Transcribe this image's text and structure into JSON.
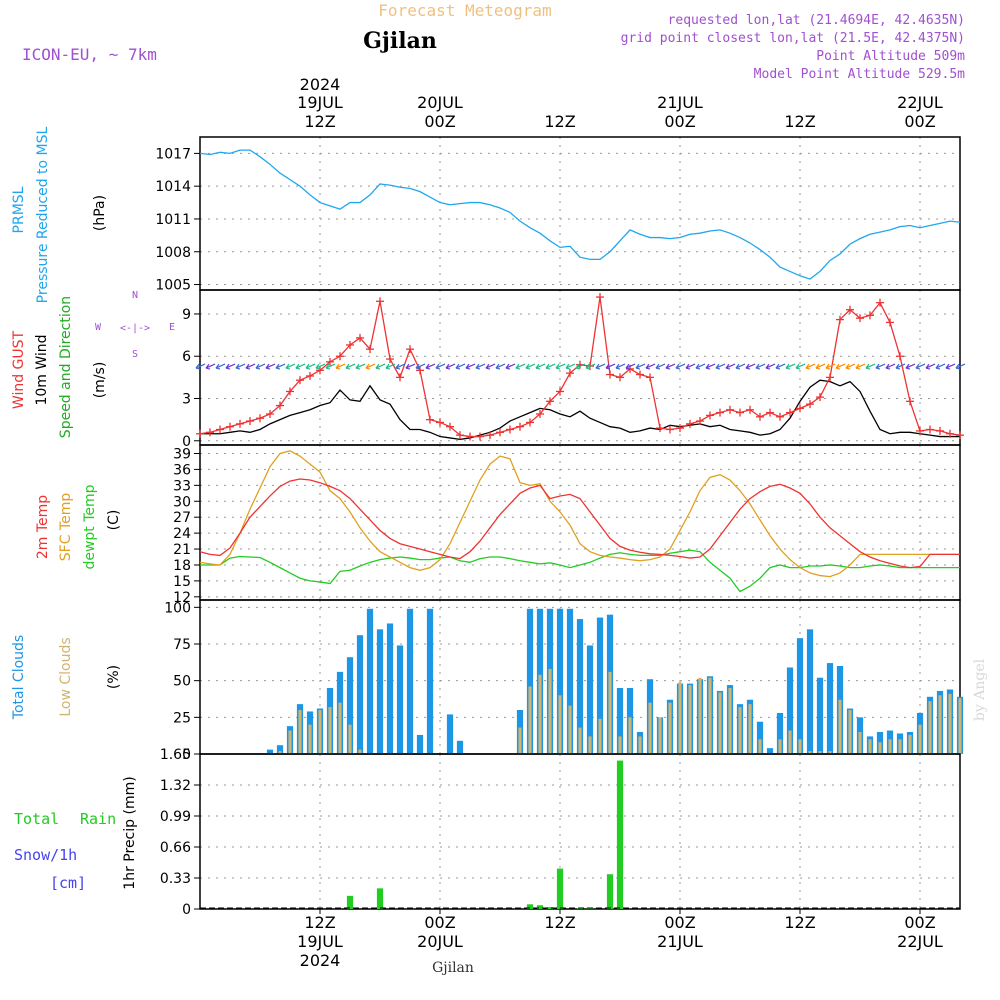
{
  "header": {
    "title": "Forecast Meteogram",
    "location": "Gjilan",
    "model": "ICON-EU, ~ 7km",
    "requested": "requested lon,lat (21.4694E, 42.4635N)",
    "gridpoint": "grid point closest lon,lat (21.5E, 42.4375N)",
    "point_altitude": "Point Altitude 509m",
    "model_altitude": "Model Point Altitude 529.5m",
    "footer_location": "Gjilan",
    "credit": "by Angel"
  },
  "colors": {
    "pressure": "#1fa7ee",
    "gust": "#ee3333",
    "wind": "#000000",
    "direction_label": "#22aa22",
    "temp": "#ee3333",
    "sfc": "#e0a020",
    "dewpt": "#22cc22",
    "total_clouds": "#1e96e6",
    "low_clouds": "#d2b46e",
    "rain": "#22cc22",
    "snow": "#4444ee",
    "title": "#f0c080",
    "meta": "#a050d0"
  },
  "time_axis": {
    "top_ticks": [
      {
        "hour": 12,
        "line1": "2024",
        "line2": "19JUL",
        "line3": "12Z"
      },
      {
        "hour": 24,
        "line1": "",
        "line2": "20JUL",
        "line3": "00Z"
      },
      {
        "hour": 36,
        "line1": "",
        "line2": "",
        "line3": "12Z"
      },
      {
        "hour": 48,
        "line1": "",
        "line2": "21JUL",
        "line3": "00Z"
      },
      {
        "hour": 60,
        "line1": "",
        "line2": "",
        "line3": "12Z"
      },
      {
        "hour": 72,
        "line1": "",
        "line2": "22JUL",
        "line3": "00Z"
      }
    ],
    "bottom_ticks": [
      {
        "hour": 12,
        "line1": "12Z",
        "line2": "19JUL",
        "line3": "2024"
      },
      {
        "hour": 24,
        "line1": "00Z",
        "line2": "20JUL",
        "line3": ""
      },
      {
        "hour": 36,
        "line1": "12Z",
        "line2": "",
        "line3": ""
      },
      {
        "hour": 48,
        "line1": "00Z",
        "line2": "21JUL",
        "line3": ""
      },
      {
        "hour": 60,
        "line1": "12Z",
        "line2": "",
        "line3": ""
      },
      {
        "hour": 72,
        "line1": "00Z",
        "line2": "22JUL",
        "line3": ""
      }
    ]
  },
  "chart_data": [
    {
      "type": "line",
      "name": "pressure",
      "labels": [
        "PRMSL",
        "Pressure Reduced to MSL",
        "(hPa)"
      ],
      "ylim": [
        1004.5,
        1018.5
      ],
      "ticks": [
        1005,
        1008,
        1011,
        1014,
        1017
      ],
      "x": [
        0,
        1,
        2,
        3,
        4,
        5,
        6,
        7,
        8,
        9,
        10,
        11,
        12,
        13,
        14,
        15,
        16,
        17,
        18,
        19,
        20,
        21,
        22,
        23,
        24,
        25,
        26,
        27,
        28,
        29,
        30,
        31,
        32,
        33,
        34,
        35,
        36,
        37,
        38,
        39,
        40,
        41,
        42,
        43,
        44,
        45,
        46,
        47,
        48,
        49,
        50,
        51,
        52,
        53,
        54,
        55,
        56,
        57,
        58,
        59,
        60,
        61,
        62,
        63,
        64,
        65,
        66,
        67,
        68,
        69,
        70,
        71,
        72,
        73,
        74,
        75,
        76
      ],
      "values": [
        1017.0,
        1016.9,
        1017.1,
        1017.0,
        1017.3,
        1017.3,
        1016.7,
        1016.0,
        1015.2,
        1014.6,
        1014.0,
        1013.2,
        1012.5,
        1012.2,
        1011.9,
        1012.5,
        1012.5,
        1013.2,
        1014.2,
        1014.1,
        1013.9,
        1013.8,
        1013.5,
        1013.0,
        1012.5,
        1012.3,
        1012.4,
        1012.5,
        1012.5,
        1012.3,
        1012.0,
        1011.6,
        1010.8,
        1010.2,
        1009.7,
        1009.0,
        1008.4,
        1008.5,
        1007.5,
        1007.3,
        1007.3,
        1008.0,
        1009.0,
        1010.0,
        1009.6,
        1009.3,
        1009.3,
        1009.2,
        1009.3,
        1009.6,
        1009.7,
        1009.9,
        1010.0,
        1009.7,
        1009.3,
        1008.8,
        1008.2,
        1007.5,
        1006.6,
        1006.2,
        1005.8,
        1005.5,
        1006.2,
        1007.2,
        1007.8,
        1008.7,
        1009.2,
        1009.6,
        1009.8,
        1010.0,
        1010.3,
        1010.4,
        1010.2,
        1010.4,
        1010.6,
        1010.8,
        1010.7
      ]
    },
    {
      "type": "line",
      "name": "wind",
      "labels": [
        "Wind GUST",
        "10m Wind",
        "Speed and Direction",
        "(m/s)"
      ],
      "compass": {
        "n": "N",
        "s": "S",
        "w": "W",
        "e": "E"
      },
      "ylim": [
        -0.3,
        10.7
      ],
      "ticks": [
        0,
        3,
        6,
        9
      ],
      "x": [
        0,
        1,
        2,
        3,
        4,
        5,
        6,
        7,
        8,
        9,
        10,
        11,
        12,
        13,
        14,
        15,
        16,
        17,
        18,
        19,
        20,
        21,
        22,
        23,
        24,
        25,
        26,
        27,
        28,
        29,
        30,
        31,
        32,
        33,
        34,
        35,
        36,
        37,
        38,
        39,
        40,
        41,
        42,
        43,
        44,
        45,
        46,
        47,
        48,
        49,
        50,
        51,
        52,
        53,
        54,
        55,
        56,
        57,
        58,
        59,
        60,
        61,
        62,
        63,
        64,
        65,
        66,
        67,
        68,
        69,
        70,
        71,
        72,
        73,
        74,
        75,
        76
      ],
      "gust": [
        0.5,
        0.6,
        0.8,
        1.0,
        1.2,
        1.4,
        1.6,
        1.9,
        2.5,
        3.5,
        4.3,
        4.6,
        5.0,
        5.6,
        6.0,
        6.8,
        7.3,
        6.5,
        9.9,
        5.8,
        4.5,
        6.5,
        5.0,
        1.5,
        1.3,
        1.0,
        0.4,
        0.3,
        0.3,
        0.4,
        0.6,
        0.8,
        1.0,
        1.3,
        1.9,
        2.8,
        3.5,
        4.8,
        5.4,
        5.3,
        10.2,
        4.7,
        4.5,
        5.1,
        4.7,
        4.5,
        0.9,
        0.8,
        0.9,
        1.2,
        1.4,
        1.8,
        2.0,
        2.2,
        2.0,
        2.2,
        1.7,
        2.0,
        1.7,
        2.0,
        2.3,
        2.6,
        3.1,
        4.5,
        8.6,
        9.3,
        8.7,
        8.9,
        9.8,
        8.4,
        6.0,
        2.8,
        0.7,
        0.8,
        0.7,
        0.5,
        0.4
      ],
      "speed": [
        0.5,
        0.5,
        0.5,
        0.6,
        0.7,
        0.6,
        0.8,
        1.2,
        1.5,
        1.8,
        2.0,
        2.2,
        2.5,
        2.7,
        3.6,
        2.9,
        2.8,
        3.9,
        2.9,
        2.6,
        1.5,
        0.8,
        0.8,
        0.6,
        0.3,
        0.2,
        0.1,
        0.2,
        0.4,
        0.6,
        0.9,
        1.4,
        1.7,
        2.0,
        2.3,
        2.2,
        1.9,
        1.7,
        2.1,
        1.6,
        1.3,
        1.0,
        0.9,
        0.6,
        0.7,
        0.9,
        0.8,
        1.1,
        1.0,
        1.1,
        1.2,
        1.0,
        1.1,
        0.8,
        0.7,
        0.6,
        0.4,
        0.5,
        0.8,
        1.6,
        2.8,
        3.8,
        4.3,
        4.2,
        3.9,
        4.2,
        3.5,
        2.1,
        0.8,
        0.5,
        0.6,
        0.6,
        0.5,
        0.4,
        0.3,
        0.3,
        0.3
      ]
    },
    {
      "type": "line",
      "name": "temperature",
      "labels": [
        "2m Temp",
        "SFC Temp",
        "dewpt Temp",
        "(C)"
      ],
      "ylim": [
        11.4,
        40.6
      ],
      "ticks": [
        12,
        15,
        18,
        21,
        24,
        27,
        30,
        33,
        36,
        39
      ],
      "x": [
        0,
        1,
        2,
        3,
        4,
        5,
        6,
        7,
        8,
        9,
        10,
        11,
        12,
        13,
        14,
        15,
        16,
        17,
        18,
        19,
        20,
        21,
        22,
        23,
        24,
        25,
        26,
        27,
        28,
        29,
        30,
        31,
        32,
        33,
        34,
        35,
        36,
        37,
        38,
        39,
        40,
        41,
        42,
        43,
        44,
        45,
        46,
        47,
        48,
        49,
        50,
        51,
        52,
        53,
        54,
        55,
        56,
        57,
        58,
        59,
        60,
        61,
        62,
        63,
        64,
        65,
        66,
        67,
        68,
        69,
        70,
        71,
        72,
        73,
        74,
        75,
        76
      ],
      "t2m": [
        20.5,
        20.0,
        19.8,
        21.2,
        24.0,
        27.0,
        29.0,
        31.0,
        32.8,
        33.8,
        34.2,
        34.0,
        33.5,
        32.8,
        32.0,
        30.5,
        28.5,
        26.5,
        24.5,
        23.0,
        22.0,
        21.5,
        21.0,
        20.5,
        20.0,
        19.5,
        19.2,
        20.5,
        22.5,
        25.0,
        27.5,
        29.5,
        31.5,
        32.5,
        33.0,
        30.5,
        31.0,
        31.3,
        30.5,
        28.0,
        25.5,
        23.0,
        21.5,
        20.8,
        20.4,
        20.1,
        20.0,
        19.8,
        19.6,
        19.3,
        19.5,
        21.0,
        23.5,
        26.0,
        28.5,
        30.5,
        31.8,
        32.8,
        33.2,
        32.5,
        31.5,
        29.5,
        27.0,
        25.0,
        23.5,
        22.0,
        20.5,
        19.5,
        18.8,
        18.3,
        17.8,
        17.5,
        17.7,
        20.0,
        20.0,
        20.0,
        20.0
      ],
      "sfc": [
        18.5,
        18.2,
        18.0,
        20.0,
        24.0,
        28.5,
        32.5,
        36.5,
        39.0,
        39.5,
        38.5,
        37.0,
        35.5,
        32.0,
        30.5,
        28.0,
        25.0,
        22.5,
        20.5,
        19.5,
        18.5,
        17.5,
        17.0,
        17.5,
        19.0,
        22.0,
        26.0,
        30.0,
        34.0,
        37.0,
        38.5,
        38.0,
        33.5,
        33.0,
        33.3,
        30.0,
        28.0,
        25.5,
        22.0,
        20.5,
        19.8,
        19.5,
        19.3,
        19.0,
        18.8,
        19.0,
        19.5,
        21.0,
        24.5,
        28.0,
        32.0,
        34.5,
        35.0,
        34.0,
        32.0,
        29.5,
        26.5,
        23.5,
        21.0,
        19.0,
        17.5,
        16.5,
        16.0,
        15.8,
        16.5,
        18.0,
        20.0,
        20.0,
        20.0,
        20.0,
        20.0,
        20.0,
        20.0,
        20.0,
        20.0,
        20.0,
        20.0
      ],
      "dewpt": [
        18.0,
        18.0,
        18.0,
        19.3,
        19.6,
        19.5,
        19.4,
        18.5,
        17.5,
        16.5,
        15.5,
        15.0,
        14.8,
        14.5,
        16.8,
        17.0,
        17.8,
        18.5,
        19.0,
        19.3,
        19.5,
        19.3,
        19.0,
        19.0,
        19.3,
        19.5,
        18.8,
        18.5,
        19.2,
        19.5,
        19.5,
        19.2,
        18.8,
        18.5,
        18.2,
        18.4,
        18.0,
        17.5,
        18.0,
        18.5,
        19.3,
        20.0,
        20.3,
        20.0,
        19.8,
        19.8,
        19.8,
        20.2,
        20.5,
        20.8,
        20.5,
        18.5,
        17.0,
        15.5,
        13.0,
        14.0,
        15.5,
        17.5,
        18.0,
        17.5,
        17.5,
        17.8,
        17.8,
        18.0,
        17.8,
        17.5,
        17.5,
        17.8,
        18.0,
        17.8,
        17.5,
        17.5,
        17.5,
        17.5,
        17.5,
        17.5,
        17.5
      ]
    },
    {
      "type": "bar",
      "name": "clouds",
      "labels": [
        "Total Clouds",
        "Low Clouds",
        "(%)"
      ],
      "ylim": [
        0,
        105
      ],
      "ticks": [
        0,
        25,
        50,
        75,
        100
      ],
      "x": [
        0,
        1,
        2,
        3,
        4,
        5,
        6,
        7,
        8,
        9,
        10,
        11,
        12,
        13,
        14,
        15,
        16,
        17,
        18,
        19,
        20,
        21,
        22,
        23,
        24,
        25,
        26,
        27,
        28,
        29,
        30,
        31,
        32,
        33,
        34,
        35,
        36,
        37,
        38,
        39,
        40,
        41,
        42,
        43,
        44,
        45,
        46,
        47,
        48,
        49,
        50,
        51,
        52,
        53,
        54,
        55,
        56,
        57,
        58,
        59,
        60,
        61,
        62,
        63,
        64,
        65,
        66,
        67,
        68,
        69,
        70,
        71,
        72,
        73,
        74,
        75,
        76
      ],
      "total": [
        0,
        0,
        0,
        0,
        0,
        0,
        0,
        3,
        6,
        19,
        34,
        29,
        31,
        45,
        56,
        66,
        81,
        99,
        85,
        89,
        74,
        99,
        13,
        99,
        0,
        27,
        9,
        0,
        0,
        0,
        0,
        0,
        30,
        99,
        99,
        99,
        99,
        99,
        92,
        74,
        93,
        95,
        45,
        45,
        15,
        51,
        25,
        37,
        48,
        48,
        51,
        53,
        43,
        47,
        34,
        37,
        22,
        4,
        28,
        59,
        79,
        85,
        52,
        62,
        60,
        31,
        25,
        12,
        15,
        16,
        14,
        15,
        28,
        39,
        43,
        44,
        39
      ],
      "low": [
        0,
        0,
        0,
        0,
        0,
        0,
        0,
        0,
        2,
        16,
        30,
        20,
        30,
        32,
        35,
        20,
        3,
        0,
        0,
        0,
        0,
        0,
        0,
        0,
        0,
        0,
        0,
        0,
        0,
        0,
        0,
        0,
        18,
        46,
        54,
        58,
        40,
        33,
        18,
        12,
        24,
        56,
        12,
        25,
        12,
        35,
        25,
        35,
        49,
        47,
        52,
        52,
        42,
        45,
        32,
        34,
        10,
        0,
        10,
        16,
        10,
        2,
        2,
        2,
        37,
        30,
        15,
        10,
        8,
        10,
        10,
        13,
        20,
        36,
        40,
        41,
        38
      ]
    },
    {
      "type": "bar",
      "name": "precipitation",
      "labels": [
        "Total",
        "Rain",
        "Snow/1h",
        "[cm]",
        "1hr Precip (mm)"
      ],
      "ylim": [
        0,
        1.65
      ],
      "ticks": [
        0,
        0.33,
        0.66,
        0.99,
        1.32,
        1.65
      ],
      "tick_labels": [
        "0",
        "0.33",
        "0.66",
        "0.99",
        "1.32",
        "1.65"
      ],
      "x": [
        15,
        18,
        33,
        34,
        35,
        36,
        38,
        39,
        41,
        42
      ],
      "rain": [
        0.14,
        0.22,
        0.05,
        0.04,
        0.02,
        0.43,
        0.01,
        0.01,
        0.37,
        1.58
      ]
    }
  ]
}
